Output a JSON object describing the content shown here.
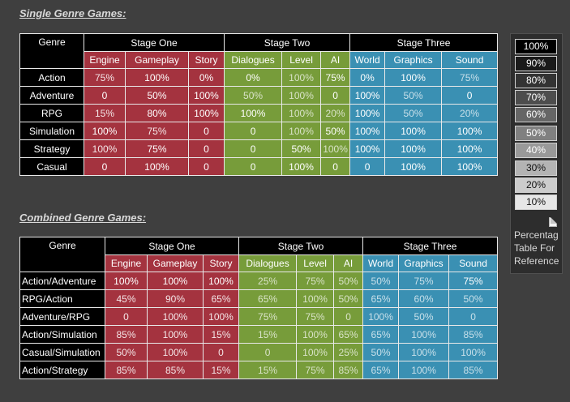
{
  "single": {
    "title": "Single Genre Games:",
    "genre_label": "Genre",
    "stages": [
      "Stage One",
      "Stage Two",
      "Stage Three"
    ],
    "subheaders": [
      "Engine",
      "Gameplay",
      "Story",
      "Dialogues",
      "Level",
      "AI",
      "World",
      "Graphics",
      "Sound"
    ],
    "rows": [
      {
        "genre": "Action",
        "values": [
          "75%",
          "100%",
          "0%",
          "0%",
          "100%",
          "75%",
          "0%",
          "100%",
          "75%"
        ]
      },
      {
        "genre": "Adventure",
        "values": [
          "0",
          "50%",
          "100%",
          "50%",
          "100%",
          "0",
          "100%",
          "50%",
          "0"
        ]
      },
      {
        "genre": "RPG",
        "values": [
          "15%",
          "80%",
          "100%",
          "100%",
          "100%",
          "20%",
          "100%",
          "50%",
          "20%"
        ]
      },
      {
        "genre": "Simulation",
        "values": [
          "100%",
          "75%",
          "0",
          "0",
          "100%",
          "50%",
          "100%",
          "100%",
          "100%"
        ]
      },
      {
        "genre": "Strategy",
        "values": [
          "100%",
          "75%",
          "0",
          "0",
          "50%",
          "100%",
          "100%",
          "100%",
          "100%"
        ]
      },
      {
        "genre": "Casual",
        "values": [
          "0",
          "100%",
          "0",
          "0",
          "100%",
          "0",
          "0",
          "100%",
          "100%"
        ]
      }
    ]
  },
  "combined": {
    "title": "Combined Genre Games:",
    "genre_label": "Genre",
    "stages": [
      "Stage One",
      "Stage Two",
      "Stage Three"
    ],
    "subheaders": [
      "Engine",
      "Gameplay",
      "Story",
      "Dialogues",
      "Level",
      "AI",
      "World",
      "Graphics",
      "Sound"
    ],
    "rows": [
      {
        "genre": "Action/Adventure",
        "values": [
          "100%",
          "100%",
          "100%",
          "25%",
          "75%",
          "50%",
          "50%",
          "75%",
          "75%"
        ]
      },
      {
        "genre": "RPG/Action",
        "values": [
          "45%",
          "90%",
          "65%",
          "65%",
          "100%",
          "50%",
          "65%",
          "60%",
          "50%"
        ]
      },
      {
        "genre": "Adventure/RPG",
        "values": [
          "0",
          "100%",
          "100%",
          "75%",
          "75%",
          "0",
          "100%",
          "50%",
          "0"
        ]
      },
      {
        "genre": "Action/Simulation",
        "values": [
          "85%",
          "100%",
          "15%",
          "15%",
          "100%",
          "65%",
          "65%",
          "100%",
          "85%"
        ]
      },
      {
        "genre": "Casual/Simulation",
        "values": [
          "50%",
          "100%",
          "0",
          "0",
          "100%",
          "25%",
          "50%",
          "100%",
          "100%"
        ]
      },
      {
        "genre": "Action/Strategy",
        "values": [
          "85%",
          "85%",
          "15%",
          "15%",
          "75%",
          "85%",
          "65%",
          "100%",
          "85%"
        ]
      }
    ]
  },
  "legend": {
    "items": [
      "100%",
      "90%",
      "80%",
      "70%",
      "60%",
      "50%",
      "40%",
      "30%",
      "20%",
      "10%"
    ],
    "colors": [
      "#000000",
      "#1a1a1a",
      "#333333",
      "#4d4d4d",
      "#666666",
      "#808080",
      "#999999",
      "#b3b3b3",
      "#cccccc",
      "#e6e6e6"
    ],
    "icon": "document-icon",
    "caption": "Percentag\nTable For\nReference"
  },
  "colors": {
    "stage_one": "#a4333f",
    "stage_two": "#779c3a",
    "stage_three": "#3a90b3",
    "header": "#000000",
    "background": "#3f3f3f"
  }
}
